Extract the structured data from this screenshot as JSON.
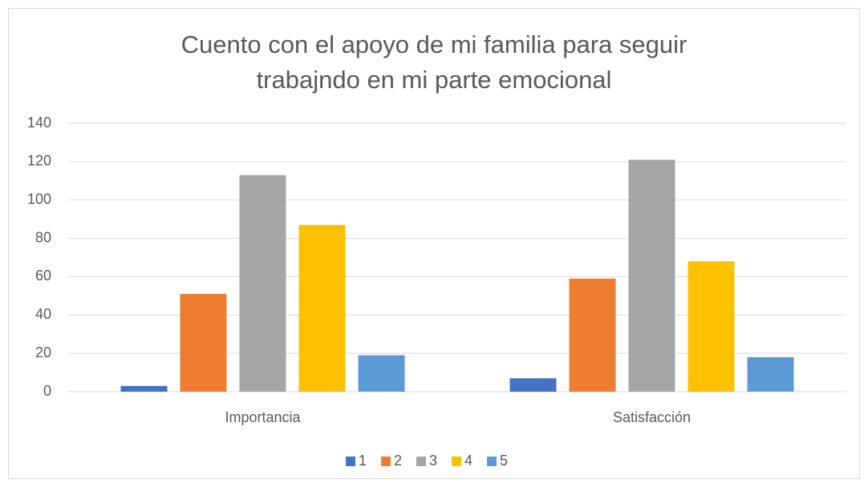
{
  "chart_data": {
    "type": "bar",
    "title": [
      "Cuento con el apoyo de mi familia para seguir",
      "trabajndo en mi parte emocional"
    ],
    "categories": [
      "Importancia",
      "Satisfacción"
    ],
    "series": [
      {
        "name": "1",
        "color": "#4472c4",
        "values": [
          3,
          7
        ]
      },
      {
        "name": "2",
        "color": "#ed7d31",
        "values": [
          51,
          59
        ]
      },
      {
        "name": "3",
        "color": "#a5a5a5",
        "values": [
          113,
          121
        ]
      },
      {
        "name": "4",
        "color": "#ffc000",
        "values": [
          87,
          68
        ]
      },
      {
        "name": "5",
        "color": "#5b9bd5",
        "values": [
          19,
          18
        ]
      }
    ],
    "ylim": [
      0,
      140
    ],
    "yticks": [
      0,
      20,
      40,
      60,
      80,
      100,
      120,
      140
    ],
    "grid": true,
    "legend": "bottom"
  }
}
